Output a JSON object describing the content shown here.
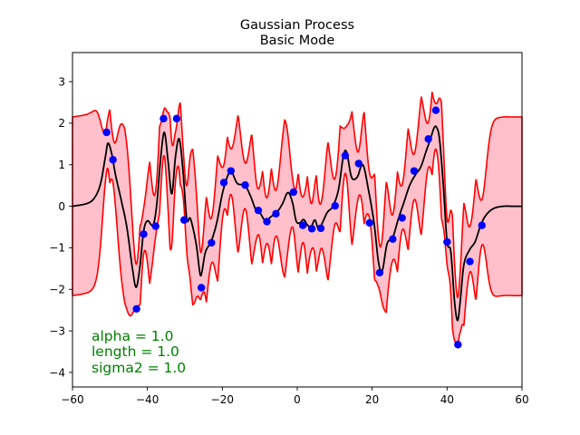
{
  "chart_data": {
    "type": "scatter",
    "title_lines": [
      "Gaussian Process",
      "Basic Mode"
    ],
    "xlim": [
      -60,
      60
    ],
    "ylim": [
      -4.35,
      3.7
    ],
    "x_ticks": [
      -60,
      -40,
      -20,
      0,
      20,
      40,
      60
    ],
    "y_ticks": [
      -4,
      -3,
      -2,
      -1,
      0,
      1,
      2,
      3
    ],
    "grid": false,
    "colors": {
      "points": "#0000ff",
      "mean": "#000000",
      "band_fill": "#ffc0cb",
      "band_edge": "#ff0000",
      "annotation": "#008000"
    },
    "points": {
      "x": [
        -50.9,
        -49.2,
        -42.9,
        -41.0,
        -37.8,
        -35.7,
        -32.2,
        -30.2,
        -25.6,
        -22.9,
        -19.6,
        -17.7,
        -13.9,
        -10.4,
        -8.1,
        -5.7,
        -1.0,
        1.5,
        3.9,
        6.3,
        10.1,
        12.8,
        16.4,
        19.3,
        22.0,
        25.5,
        28.0,
        31.2,
        35.0,
        37.0,
        40.0,
        42.9,
        46.1,
        49.3
      ],
      "y": [
        1.78,
        1.12,
        -2.47,
        -0.67,
        -0.48,
        2.11,
        2.11,
        -0.33,
        -1.96,
        -0.88,
        0.57,
        0.85,
        0.51,
        -0.1,
        -0.37,
        -0.18,
        0.34,
        -0.46,
        -0.54,
        -0.53,
        0.01,
        1.22,
        1.03,
        -0.4,
        -1.6,
        -0.79,
        -0.28,
        0.85,
        1.62,
        2.31,
        -0.86,
        -3.33,
        -1.33,
        -0.46
      ]
    },
    "mean_curve": {
      "x": [
        -60,
        -56,
        -54,
        -52.5,
        -51.2,
        -50.5,
        -49.5,
        -48.5,
        -47,
        -45.5,
        -44,
        -43,
        -42,
        -41,
        -40,
        -38.5,
        -37.5,
        -36.5,
        -35.5,
        -34.5,
        -33.5,
        -32.5,
        -31.5,
        -30.5,
        -29.5,
        -28.5,
        -27,
        -26,
        -25.5,
        -24.5,
        -23,
        -21.5,
        -20,
        -18.5,
        -17.5,
        -16,
        -14,
        -12.5,
        -11,
        -10,
        -8.5,
        -7,
        -5.5,
        -4,
        -2.5,
        -1.3,
        -0.3,
        0.7,
        1.7,
        2.7,
        3.7,
        4.7,
        5.7,
        6.7,
        8,
        9.5,
        11,
        12.3,
        13.2,
        14.5,
        16,
        17.5,
        19,
        20.5,
        21.7,
        22.7,
        24,
        25.5,
        27,
        28.5,
        30,
        31.5,
        33,
        34.5,
        35.5,
        36.5,
        37.2,
        38,
        39,
        40,
        41,
        42,
        42.8,
        43.5,
        44.5,
        46,
        47.5,
        49,
        50.5,
        52.5,
        55,
        57.5,
        60
      ],
      "y": [
        0.0,
        0.07,
        0.22,
        0.55,
        1.2,
        1.52,
        1.25,
        0.75,
        0.15,
        -0.5,
        -1.5,
        -1.95,
        -1.45,
        -0.6,
        -0.35,
        -0.45,
        0.05,
        1.12,
        1.78,
        1.1,
        0.3,
        1.2,
        1.62,
        0.85,
        -0.3,
        -0.3,
        -0.9,
        -1.6,
        -1.6,
        -1.1,
        -0.85,
        -0.4,
        0.3,
        0.75,
        0.82,
        0.55,
        0.5,
        0.25,
        -0.1,
        -0.15,
        -0.35,
        -0.25,
        -0.15,
        0.05,
        0.33,
        0.1,
        -0.35,
        -0.4,
        -0.32,
        -0.45,
        -0.5,
        -0.33,
        -0.55,
        -0.4,
        -0.15,
        0.0,
        0.4,
        1.2,
        1.3,
        0.7,
        0.7,
        1.0,
        0.4,
        -0.4,
        -1.35,
        -1.55,
        -0.9,
        -0.75,
        -0.3,
        0.1,
        0.5,
        0.75,
        0.95,
        1.35,
        1.6,
        1.88,
        1.9,
        1.6,
        0.5,
        -0.85,
        -1.1,
        -2.3,
        -2.75,
        -2.3,
        -1.4,
        -1.05,
        -0.85,
        -0.45,
        -0.2,
        -0.05,
        0.0,
        0.0,
        0.0
      ]
    },
    "annotations": [
      "alpha = 1.0",
      "length = 1.0",
      "sigma2 = 1.0"
    ]
  }
}
